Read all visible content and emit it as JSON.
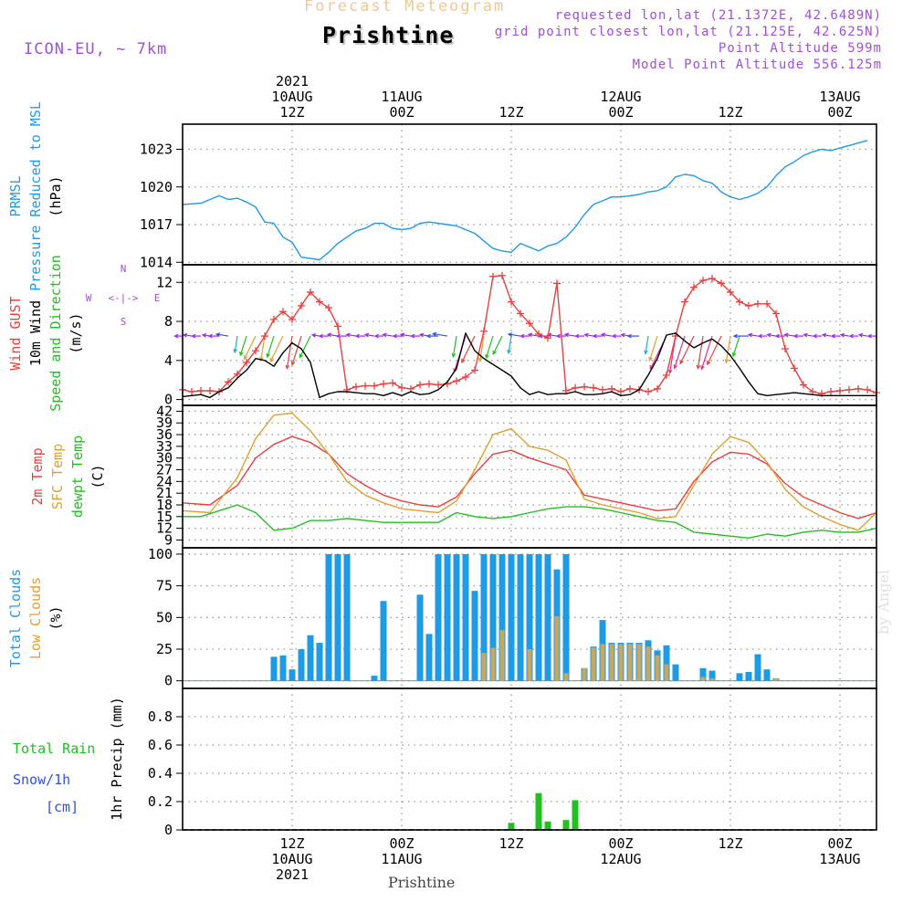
{
  "header": {
    "subtitle": "Forecast Meteogram",
    "location": "Prishtine",
    "model": "ICON-EU, ~ 7km",
    "requested": "requested lon,lat (21.1372E, 42.6489N)",
    "grid": "grid point closest lon,lat (21.125E, 42.625N)",
    "altitude": "Point Altitude 599m",
    "model_altitude": "Model Point Altitude 556.125m",
    "footer_location": "Prishtine",
    "watermark": "by Angel"
  },
  "colors": {
    "pressure": "#1e9be6",
    "gust": "#e84040",
    "wind": "#000000",
    "t2m": "#e84040",
    "tsfc": "#e0a030",
    "dewpt": "#20c020",
    "total_cloud": "#1e9be6",
    "low_cloud": "#c8a860",
    "rain": "#20c020",
    "snow": "#3050e0",
    "header_purple": "#a050d8",
    "subtitle_orange": "#f0c890"
  },
  "time_axis": {
    "top_labels": [
      {
        "x": 12,
        "lines": [
          "2021",
          "10AUG",
          "12Z"
        ]
      },
      {
        "x": 24,
        "lines": [
          "11AUG",
          "00Z"
        ]
      },
      {
        "x": 36,
        "lines": [
          "12Z"
        ]
      },
      {
        "x": 48,
        "lines": [
          "12AUG",
          "00Z"
        ]
      },
      {
        "x": 60,
        "lines": [
          "12Z"
        ]
      },
      {
        "x": 72,
        "lines": [
          "13AUG",
          "00Z"
        ]
      }
    ],
    "bottom_labels": [
      {
        "x": 12,
        "lines": [
          "12Z",
          "10AUG",
          "2021"
        ]
      },
      {
        "x": 24,
        "lines": [
          "00Z",
          "11AUG"
        ]
      },
      {
        "x": 36,
        "lines": [
          "12Z"
        ]
      },
      {
        "x": 48,
        "lines": [
          "00Z",
          "12AUG"
        ]
      },
      {
        "x": 60,
        "lines": [
          "12Z"
        ]
      },
      {
        "x": 72,
        "lines": [
          "00Z",
          "13AUG"
        ]
      }
    ],
    "range": [
      0,
      76
    ]
  },
  "chart_data": [
    {
      "type": "line",
      "ylabel_lines": [
        {
          "text": "PRMSL",
          "color": "pressure"
        },
        {
          "text": "Pressure Reduced to MSL",
          "color": "pressure"
        },
        {
          "text": "(hPa)",
          "color": "wind"
        }
      ],
      "ylim": [
        1013.8,
        1025
      ],
      "yticks": [
        1014,
        1017,
        1020,
        1023
      ],
      "series": [
        {
          "color": "pressure",
          "x": [
            0,
            2,
            3,
            4,
            5,
            6,
            7,
            8,
            9,
            10,
            11,
            12,
            13,
            14,
            15,
            16,
            17,
            18,
            19,
            20,
            21,
            22,
            23,
            24,
            25,
            26,
            27,
            28,
            29,
            30,
            31,
            32,
            33,
            34,
            35,
            36,
            37,
            38,
            39,
            40,
            41,
            42,
            43,
            44,
            45,
            46,
            47,
            48,
            49,
            50,
            51,
            52,
            53,
            54,
            55,
            56,
            57,
            58,
            59,
            60,
            61,
            62,
            63,
            64,
            65,
            66,
            67,
            68,
            69,
            70,
            71,
            72,
            73,
            74,
            75
          ],
          "y": [
            1018.6,
            1018.7,
            1019.0,
            1019.3,
            1019.0,
            1019.1,
            1018.8,
            1018.4,
            1017.2,
            1017.1,
            1016.0,
            1015.6,
            1014.4,
            1014.3,
            1014.2,
            1014.8,
            1015.5,
            1016.0,
            1016.5,
            1016.7,
            1017.1,
            1017.1,
            1016.7,
            1016.6,
            1016.7,
            1017.1,
            1017.2,
            1017.1,
            1017.0,
            1016.9,
            1016.6,
            1016.3,
            1015.7,
            1015.1,
            1014.9,
            1014.8,
            1015.5,
            1015.2,
            1014.9,
            1015.3,
            1015.5,
            1016.0,
            1016.8,
            1017.8,
            1018.6,
            1018.9,
            1019.2,
            1019.2,
            1019.3,
            1019.4,
            1019.6,
            1019.7,
            1020.0,
            1020.8,
            1021.0,
            1020.9,
            1020.5,
            1020.3,
            1019.6,
            1019.2,
            1019.0,
            1019.2,
            1019.5,
            1020.0,
            1020.9,
            1021.6,
            1022.0,
            1022.5,
            1022.8,
            1023.0,
            1022.9,
            1023.1,
            1023.3,
            1023.5,
            1023.7
          ]
        }
      ]
    },
    {
      "type": "line",
      "ylabel_lines": [
        {
          "text": "Wind GUST",
          "color": "gust"
        },
        {
          "text": "10m Wind",
          "color": "wind"
        },
        {
          "text": "Speed and Direction",
          "color": "dewpt"
        },
        {
          "text": "(m/s)",
          "color": "wind"
        }
      ],
      "compass": {
        "n": "N",
        "s": "S",
        "e": "E",
        "w": "W",
        "arrow": "<-|->"
      },
      "ylim": [
        -0.6,
        13.8
      ],
      "yticks": [
        0,
        4,
        8,
        12
      ],
      "series": [
        {
          "name": "gust",
          "color": "gust",
          "markers": true,
          "x": [
            0,
            1,
            2,
            3,
            4,
            5,
            6,
            7,
            8,
            9,
            10,
            11,
            12,
            13,
            14,
            15,
            16,
            17,
            18,
            19,
            20,
            21,
            22,
            23,
            24,
            25,
            26,
            27,
            28,
            29,
            30,
            31,
            32,
            33,
            34,
            35,
            36,
            37,
            38,
            39,
            40,
            41,
            42,
            43,
            44,
            45,
            46,
            47,
            48,
            49,
            50,
            51,
            52,
            53,
            54,
            55,
            56,
            57,
            58,
            59,
            60,
            61,
            62,
            63,
            64,
            65,
            66,
            67,
            68,
            69,
            70,
            71,
            72,
            73,
            74,
            75,
            76
          ],
          "y": [
            1.0,
            0.8,
            0.9,
            0.9,
            0.8,
            1.8,
            2.6,
            3.8,
            5.0,
            6.5,
            8.2,
            9.0,
            8.2,
            9.6,
            11.0,
            10.0,
            9.4,
            7.5,
            1.0,
            1.3,
            1.4,
            1.4,
            1.6,
            1.7,
            1.2,
            1.1,
            1.5,
            1.6,
            1.5,
            1.6,
            1.9,
            2.3,
            3.0,
            7.0,
            12.6,
            12.7,
            10.0,
            8.8,
            7.8,
            6.7,
            6.3,
            11.9,
            0.9,
            1.2,
            1.3,
            1.2,
            1.0,
            1.1,
            0.8,
            1.1,
            1.0,
            0.8,
            1.1,
            2.5,
            6.5,
            10.0,
            11.5,
            12.2,
            12.4,
            11.9,
            11.0,
            10.0,
            9.6,
            9.8,
            9.8,
            8.8,
            5.2,
            3.2,
            1.5,
            0.8,
            0.6,
            0.8,
            0.9,
            1.0,
            1.1,
            1.0,
            0.7
          ]
        },
        {
          "name": "wind",
          "color": "wind",
          "markers": false,
          "x": [
            0,
            1,
            2,
            3,
            4,
            5,
            6,
            7,
            8,
            9,
            10,
            11,
            12,
            13,
            14,
            15,
            16,
            17,
            18,
            19,
            20,
            21,
            22,
            23,
            24,
            25,
            26,
            27,
            28,
            29,
            30,
            31,
            32,
            33,
            34,
            35,
            36,
            37,
            38,
            39,
            40,
            41,
            42,
            43,
            44,
            45,
            46,
            47,
            48,
            49,
            50,
            51,
            52,
            53,
            54,
            55,
            56,
            57,
            58,
            59,
            60,
            61,
            62,
            63,
            64,
            65,
            66,
            67,
            68,
            69,
            70,
            71,
            72,
            73,
            74,
            75,
            76
          ],
          "y": [
            0.3,
            0.4,
            0.5,
            0.2,
            0.8,
            1.2,
            2.2,
            3.0,
            4.2,
            4.0,
            3.4,
            4.8,
            5.8,
            5.2,
            3.8,
            0.2,
            0.6,
            0.8,
            0.8,
            0.7,
            0.6,
            0.6,
            0.4,
            0.7,
            0.4,
            0.8,
            0.5,
            0.6,
            1.0,
            1.8,
            3.2,
            6.8,
            5.0,
            4.2,
            3.6,
            3.0,
            2.4,
            1.2,
            0.5,
            0.8,
            0.5,
            0.6,
            0.6,
            0.8,
            0.5,
            0.5,
            0.6,
            0.8,
            0.4,
            0.5,
            1.0,
            2.5,
            4.2,
            6.6,
            6.8,
            6.0,
            5.3,
            5.8,
            6.2,
            5.5,
            4.5,
            3.2,
            1.8,
            0.6,
            0.4,
            0.5,
            0.6,
            0.7,
            0.6,
            0.5,
            0.4,
            0.4,
            0.4,
            0.4,
            0.4,
            0.4,
            0.4
          ]
        }
      ]
    },
    {
      "type": "line",
      "ylabel_lines": [
        {
          "text": "2m Temp",
          "color": "t2m"
        },
        {
          "text": "SFC Temp",
          "color": "tsfc"
        },
        {
          "text": "dewpt Temp",
          "color": "dewpt"
        },
        {
          "text": "(C)",
          "color": "wind"
        }
      ],
      "ylim": [
        7,
        43.5
      ],
      "yticks": [
        9,
        12,
        15,
        18,
        21,
        24,
        27,
        30,
        33,
        36,
        39,
        42
      ],
      "series": [
        {
          "name": "t2m",
          "color": "t2m",
          "x": [
            0,
            3,
            6,
            8,
            10,
            12,
            14,
            16,
            18,
            20,
            22,
            24,
            26,
            28,
            30,
            32,
            34,
            36,
            38,
            40,
            42,
            44,
            46,
            48,
            50,
            52,
            54,
            56,
            58,
            60,
            62,
            64,
            66,
            68,
            70,
            72,
            74,
            76
          ],
          "y": [
            18.5,
            18,
            23,
            30,
            33.5,
            35.5,
            34,
            31,
            26,
            23,
            20.5,
            19,
            18,
            17.5,
            20,
            26,
            31,
            32,
            30,
            28.5,
            27,
            20.5,
            19.5,
            18.5,
            17.5,
            16.5,
            17,
            24,
            29,
            31.5,
            31,
            28.5,
            23.5,
            20,
            18,
            16,
            14.5,
            16
          ]
        },
        {
          "name": "tsfc",
          "color": "tsfc",
          "x": [
            0,
            3,
            6,
            8,
            10,
            12,
            14,
            16,
            18,
            20,
            22,
            24,
            26,
            28,
            30,
            32,
            34,
            36,
            38,
            40,
            42,
            44,
            46,
            48,
            50,
            52,
            54,
            56,
            58,
            60,
            62,
            64,
            66,
            68,
            70,
            72,
            74,
            76
          ],
          "y": [
            16.5,
            16,
            25,
            35,
            41,
            41.5,
            37,
            31,
            24,
            20.5,
            18.5,
            17,
            16.5,
            16,
            19,
            27,
            36,
            37.5,
            33,
            32,
            29.5,
            19.5,
            18,
            17,
            16,
            14.5,
            15,
            23,
            31,
            35.5,
            34,
            29,
            22,
            17.5,
            15,
            13,
            11.5,
            16
          ]
        },
        {
          "name": "dewpt",
          "color": "dewpt",
          "x": [
            0,
            2,
            4,
            6,
            8,
            10,
            12,
            14,
            16,
            18,
            20,
            22,
            24,
            26,
            28,
            30,
            32,
            34,
            36,
            38,
            40,
            42,
            44,
            46,
            48,
            50,
            52,
            54,
            56,
            58,
            60,
            62,
            64,
            66,
            68,
            70,
            72,
            74,
            76
          ],
          "y": [
            15,
            15,
            16.5,
            18,
            16,
            11.5,
            12,
            14,
            14,
            14.5,
            14,
            13.5,
            13.5,
            13.5,
            13.5,
            16,
            15,
            14.5,
            15,
            16,
            17,
            17.5,
            17.5,
            17,
            16,
            15,
            14,
            13.5,
            11,
            10.5,
            10,
            9.5,
            10.5,
            10,
            11,
            11.5,
            11,
            11,
            12
          ]
        }
      ]
    },
    {
      "type": "bar",
      "ylabel_lines": [
        {
          "text": "Total Clouds",
          "color": "total_cloud"
        },
        {
          "text": "Low Clouds",
          "color": "tsfc"
        },
        {
          "text": "(%)",
          "color": "wind"
        }
      ],
      "ylim": [
        -6,
        105
      ],
      "yticks": [
        0,
        25,
        50,
        75,
        100
      ],
      "total": {
        "x": [
          10,
          11,
          12,
          13,
          14,
          15,
          16,
          17,
          18,
          21,
          22,
          26,
          27,
          28,
          29,
          30,
          31,
          32,
          33,
          34,
          35,
          36,
          37,
          38,
          39,
          40,
          41,
          42,
          44,
          45,
          46,
          47,
          48,
          49,
          50,
          51,
          52,
          53,
          54,
          57,
          58,
          61,
          62,
          63,
          64,
          65
        ],
        "y": [
          19,
          20,
          9,
          25,
          36,
          30,
          100,
          100,
          100,
          4,
          63,
          68,
          37,
          100,
          100,
          100,
          100,
          71,
          100,
          100,
          100,
          100,
          100,
          100,
          100,
          100,
          88,
          100,
          10,
          27,
          48,
          30,
          30,
          30,
          30,
          32,
          24,
          28,
          13,
          10,
          8,
          6,
          7,
          21,
          9,
          2
        ]
      },
      "low": {
        "x": [
          33,
          34,
          35,
          38,
          41,
          42,
          44,
          45,
          46,
          47,
          48,
          49,
          50,
          51,
          52,
          53,
          57,
          58,
          65
        ],
        "y": [
          22,
          26,
          40,
          25,
          51,
          6,
          10,
          26,
          29,
          29,
          29,
          29,
          29,
          27,
          20,
          13,
          3,
          2,
          2
        ]
      }
    },
    {
      "type": "bar",
      "ylabel_lines": [
        {
          "text": "1hr Precip (mm)",
          "color": "wind"
        }
      ],
      "side_labels": [
        {
          "text": "Total  Rain",
          "color": "rain"
        },
        {
          "text": "Snow/1h",
          "color": "snow"
        },
        {
          "text": "[cm]",
          "color": "snow"
        }
      ],
      "ylim": [
        0,
        1.0
      ],
      "yticks": [
        0,
        0.2,
        0.4,
        0.6,
        0.8
      ],
      "ytick_labels": [
        "0",
        "0.2",
        "0.4",
        "0.6",
        "0.8"
      ],
      "rain": {
        "x": [
          36,
          39,
          40,
          42,
          43
        ],
        "y": [
          0.05,
          0.26,
          0.06,
          0.07,
          0.21
        ]
      }
    }
  ]
}
